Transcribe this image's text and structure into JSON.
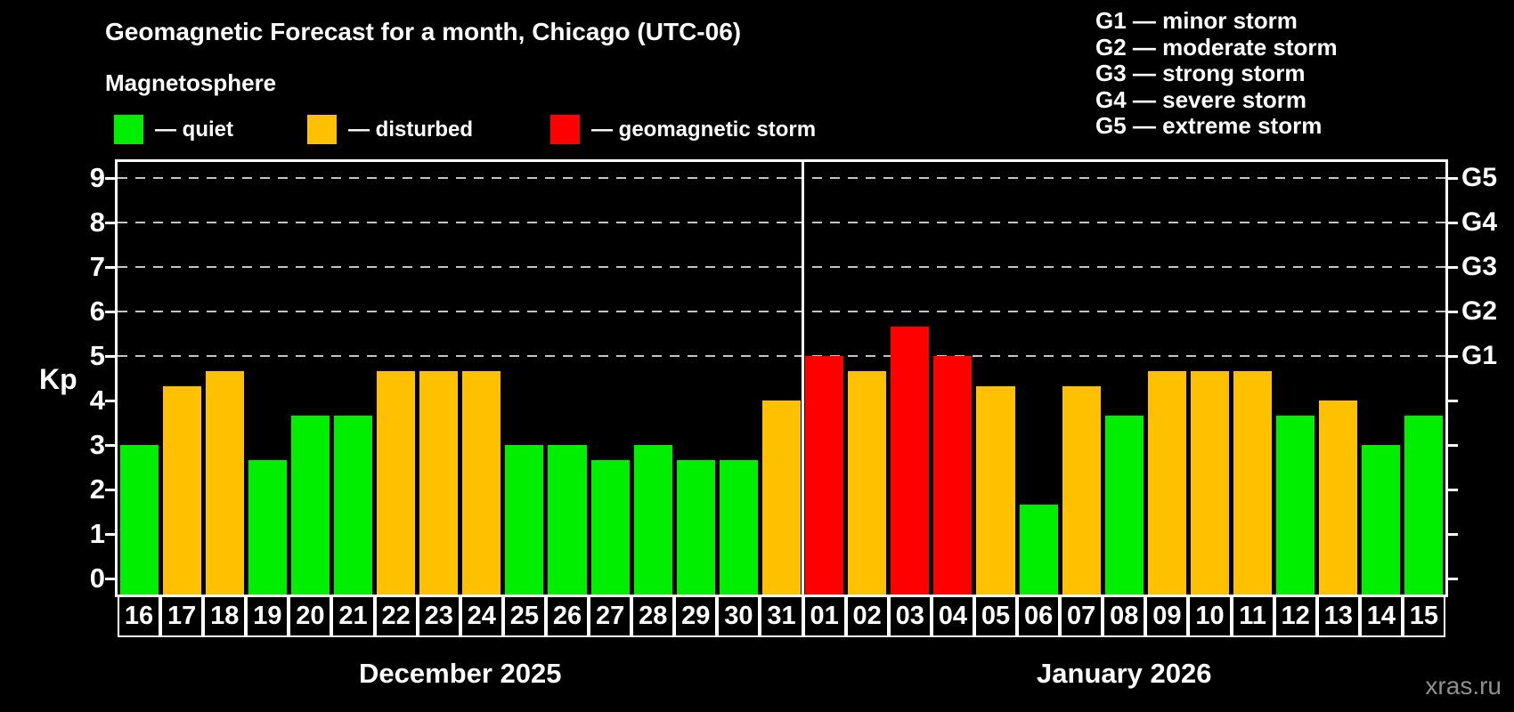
{
  "header": {
    "title": "Geomagnetic Forecast for a month, Chicago (UTC-06)",
    "subtitle": "Magnetosphere"
  },
  "legend": {
    "items": [
      {
        "level": "quiet",
        "label": "— quiet",
        "color": "#00ee00"
      },
      {
        "level": "disturbed",
        "label": "— disturbed",
        "color": "#ffc000"
      },
      {
        "level": "storm",
        "label": "— geomagnetic storm",
        "color": "#ff0000"
      }
    ]
  },
  "gscale_legend": {
    "items": [
      "G1 — minor storm",
      "G2 — moderate storm",
      "G3 — strong storm",
      "G4 — severe storm",
      "G5 — extreme storm"
    ]
  },
  "watermark": "xras.ru",
  "chart_data": {
    "type": "bar",
    "title": "Geomagnetic Forecast for a month, Chicago (UTC-06)",
    "subtitle": "Magnetosphere",
    "ylabel": "Kp",
    "ylim": [
      0,
      9
    ],
    "yticks": [
      0,
      1,
      2,
      3,
      4,
      5,
      6,
      7,
      8,
      9
    ],
    "gridlines_kp": [
      5,
      6,
      7,
      8,
      9
    ],
    "grid": "dashed horizontal lines at Kp 5-9 only",
    "right_axis": [
      {
        "kp": 5,
        "label": "G1"
      },
      {
        "kp": 6,
        "label": "G2"
      },
      {
        "kp": 7,
        "label": "G3"
      },
      {
        "kp": 8,
        "label": "G4"
      },
      {
        "kp": 9,
        "label": "G5"
      }
    ],
    "level_thresholds": {
      "disturbed_min_kp": 4,
      "storm_min_kp": 5
    },
    "colors": {
      "quiet": "#00ee00",
      "disturbed": "#ffc000",
      "storm": "#ff0000"
    },
    "months": [
      {
        "label": "December 2025",
        "days": [
          "16",
          "17",
          "18",
          "19",
          "20",
          "21",
          "22",
          "23",
          "24",
          "25",
          "26",
          "27",
          "28",
          "29",
          "30",
          "31"
        ],
        "values": [
          3.0,
          4.33,
          4.67,
          2.67,
          3.67,
          3.67,
          4.67,
          4.67,
          4.67,
          3.0,
          3.0,
          2.67,
          3.0,
          2.67,
          2.67,
          4.0
        ]
      },
      {
        "label": "January 2026",
        "days": [
          "01",
          "02",
          "03",
          "04",
          "05",
          "06",
          "07",
          "08",
          "09",
          "10",
          "11",
          "12",
          "13",
          "14",
          "15"
        ],
        "values": [
          5.0,
          4.67,
          5.67,
          5.0,
          4.33,
          1.67,
          4.33,
          3.67,
          4.67,
          4.67,
          4.67,
          3.67,
          4.0,
          3.0,
          3.67
        ]
      }
    ]
  }
}
